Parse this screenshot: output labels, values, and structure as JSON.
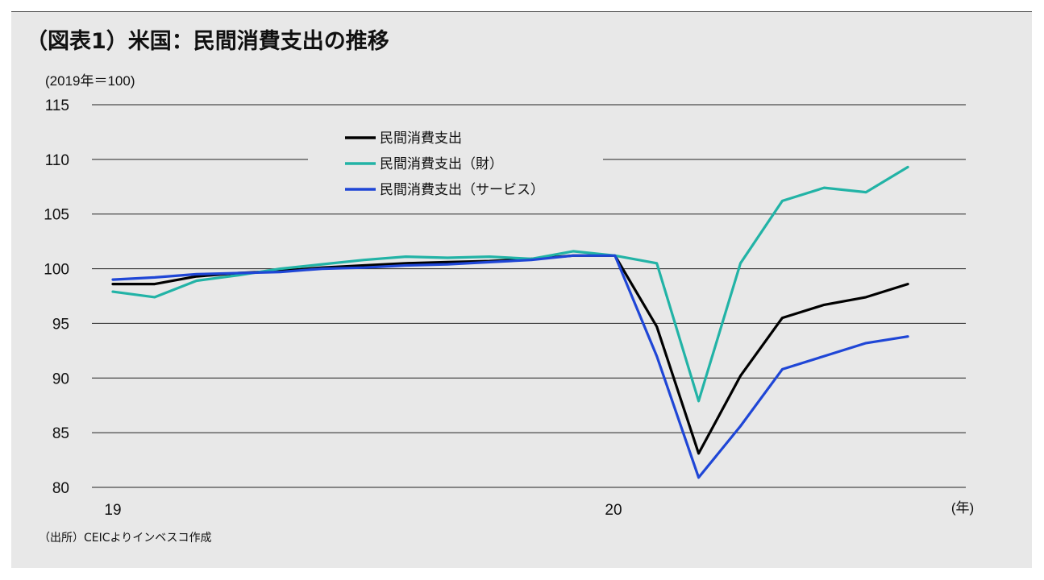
{
  "title": "（図表1）米国：民間消費支出の推移",
  "source": "（出所）CEICよりインベスコ作成",
  "chart_data": {
    "type": "line",
    "yunit": "(2019年＝100)",
    "xunit": "(年)",
    "ylim": [
      80,
      115
    ],
    "yticks": [
      80,
      85,
      90,
      95,
      100,
      105,
      110,
      115
    ],
    "xticks": [
      "19",
      "20"
    ],
    "xlim_months": [
      1,
      21
    ],
    "grid": true,
    "legend_position": "top-center",
    "series": [
      {
        "name": "民間消費支出",
        "color": "#000000",
        "values": [
          98.6,
          98.6,
          99.3,
          99.6,
          99.8,
          100.1,
          100.3,
          100.5,
          100.6,
          100.7,
          100.9,
          101.2,
          101.2,
          94.7,
          83.1,
          90.2,
          95.5,
          96.7,
          97.4,
          98.6
        ]
      },
      {
        "name": "民間消費支出（財）",
        "color": "#22b3a6",
        "values": [
          97.9,
          97.4,
          98.9,
          99.4,
          100.0,
          100.4,
          100.8,
          101.1,
          101.0,
          101.1,
          100.9,
          101.6,
          101.2,
          100.5,
          87.9,
          100.5,
          106.2,
          107.4,
          107.0,
          109.3
        ]
      },
      {
        "name": "民間消費支出（サービス）",
        "color": "#1f46d6",
        "values": [
          99.0,
          99.2,
          99.5,
          99.6,
          99.7,
          100.0,
          100.1,
          100.3,
          100.4,
          100.6,
          100.8,
          101.2,
          101.2,
          92.0,
          80.9,
          85.6,
          90.8,
          92.0,
          93.2,
          93.8
        ]
      }
    ]
  }
}
